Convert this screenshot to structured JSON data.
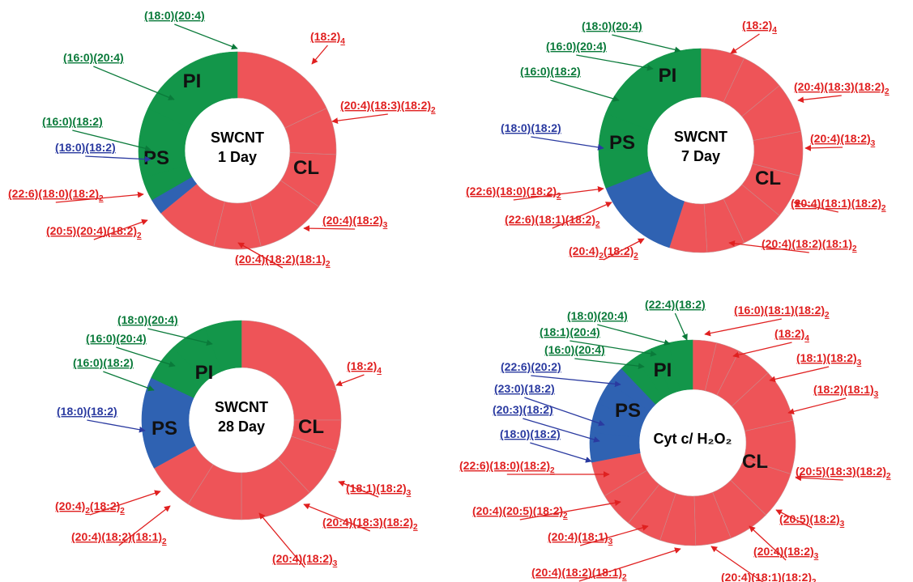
{
  "colors": {
    "CL": "#ee5458",
    "PI": "#13964a",
    "PS": "#2f62b2",
    "CL_text": "#e02020",
    "PI_text": "#0a7a3a",
    "PS_text": "#2a3aa0"
  },
  "chart_data": [
    {
      "type": "pie",
      "variant": "donut",
      "center_lines": [
        "SWCNT",
        "1 Day"
      ],
      "class_labels": {
        "PI": "PI",
        "PS": "PS",
        "CL": "CL"
      },
      "slices": [
        {
          "class": "CL",
          "value": 14
        },
        {
          "class": "CL",
          "value": 6
        },
        {
          "class": "CL",
          "value": 7
        },
        {
          "class": "CL",
          "value": 9
        },
        {
          "class": "CL",
          "value": 6
        },
        {
          "class": "CL",
          "value": 8
        },
        {
          "class": "PS",
          "value": 2
        },
        {
          "class": "PI",
          "value": 3
        },
        {
          "class": "PI",
          "value": 9
        },
        {
          "class": "PI",
          "value": 14
        }
      ],
      "labels": [
        {
          "main": "(18:2)",
          "sub": "4",
          "cls": "CL"
        },
        {
          "main": "(20:4)(18:3)(18:2)",
          "sub": "2",
          "cls": "CL"
        },
        {
          "main": "(20:4)(18:2)",
          "sub": "3",
          "cls": "CL"
        },
        {
          "main": "(20:4)(18:2)(18:1)",
          "sub": "2",
          "cls": "CL"
        },
        {
          "main": "(20:5)(20:4)(18:2)",
          "sub": "2",
          "cls": "CL"
        },
        {
          "main": "(22:6)(18:0)(18:2)",
          "sub": "2",
          "cls": "CL"
        },
        {
          "main": "(18:0)(18:2)",
          "sub": "",
          "cls": "PS"
        },
        {
          "main": "(16:0)(18:2)",
          "sub": "",
          "cls": "PI"
        },
        {
          "main": "(16:0)(20:4)",
          "sub": "",
          "cls": "PI"
        },
        {
          "main": "(18:0)(20:4)",
          "sub": "",
          "cls": "PI"
        }
      ]
    },
    {
      "type": "pie",
      "variant": "donut",
      "center_lines": [
        "SWCNT",
        "7 Day"
      ],
      "class_labels": {
        "PI": "PI",
        "PS": "PS",
        "CL": "CL"
      },
      "slices": [
        {
          "class": "CL",
          "value": 7
        },
        {
          "class": "CL",
          "value": 7
        },
        {
          "class": "CL",
          "value": 8
        },
        {
          "class": "CL",
          "value": 7
        },
        {
          "class": "CL",
          "value": 7
        },
        {
          "class": "CL",
          "value": 7
        },
        {
          "class": "CL",
          "value": 6
        },
        {
          "class": "CL",
          "value": 6
        },
        {
          "class": "PS",
          "value": 14
        },
        {
          "class": "PI",
          "value": 6
        },
        {
          "class": "PI",
          "value": 6
        },
        {
          "class": "PI",
          "value": 19
        }
      ],
      "labels": [
        {
          "main": "(18:2)",
          "sub": "4",
          "cls": "CL"
        },
        {
          "main": "(20:4)(18:3)(18:2)",
          "sub": "2",
          "cls": "CL"
        },
        {
          "main": "(20:4)(18:2)",
          "sub": "3",
          "cls": "CL"
        },
        {
          "main": "(20:4)(18:1)(18:2)",
          "sub": "2",
          "cls": "CL"
        },
        {
          "main": "(20:4)(18:2)(18:1)",
          "sub": "2",
          "cls": "CL"
        },
        {
          "main": "(20:4)",
          "sub": "2",
          "main2": "(18:2)",
          "sub2": "2",
          "cls": "CL"
        },
        {
          "main": "(22:6)(18:1)(18:2)",
          "sub": "2",
          "cls": "CL"
        },
        {
          "main": "(22:6)(18:0)(18:2)",
          "sub": "2",
          "cls": "CL"
        },
        {
          "main": "(18:0)(18:2)",
          "sub": "",
          "cls": "PS"
        },
        {
          "main": "(16:0)(18:2)",
          "sub": "",
          "cls": "PI"
        },
        {
          "main": "(16:0)(20:4)",
          "sub": "",
          "cls": "PI"
        },
        {
          "main": "(18:0)(20:4)",
          "sub": "",
          "cls": "PI"
        }
      ]
    },
    {
      "type": "pie",
      "variant": "donut",
      "center_lines": [
        "SWCNT",
        "28 Day"
      ],
      "class_labels": {
        "PI": "PI",
        "PS": "PS",
        "CL": "CL"
      },
      "slices": [
        {
          "class": "CL",
          "value": 25
        },
        {
          "class": "CL",
          "value": 5
        },
        {
          "class": "CL",
          "value": 8
        },
        {
          "class": "CL",
          "value": 12
        },
        {
          "class": "CL",
          "value": 9
        },
        {
          "class": "CL",
          "value": 8
        },
        {
          "class": "PS",
          "value": 15
        },
        {
          "class": "PI",
          "value": 6
        },
        {
          "class": "PI",
          "value": 6
        },
        {
          "class": "PI",
          "value": 6
        }
      ],
      "labels": [
        {
          "main": "(18:2)",
          "sub": "4",
          "cls": "CL"
        },
        {
          "main": "(18:1)(18:2)",
          "sub": "3",
          "cls": "CL"
        },
        {
          "main": "(20:4)(18:3)(18:2)",
          "sub": "2",
          "cls": "CL"
        },
        {
          "main": "(20:4)(18:2)",
          "sub": "3",
          "cls": "CL"
        },
        {
          "main": "(20:4)(18:2)(18:1)",
          "sub": "2",
          "cls": "CL"
        },
        {
          "main": "(20:4)",
          "sub": "2",
          "main2": "(18:2)",
          "sub2": "2",
          "cls": "CL"
        },
        {
          "main": "(18:0)(18:2)",
          "sub": "",
          "cls": "PS"
        },
        {
          "main": "(16:0)(18:2)",
          "sub": "",
          "cls": "PI"
        },
        {
          "main": "(16:0)(20:4)",
          "sub": "",
          "cls": "PI"
        },
        {
          "main": "(18:0)(20:4)",
          "sub": "",
          "cls": "PI"
        }
      ]
    },
    {
      "type": "pie",
      "variant": "donut",
      "center_lines": [
        "Cyt c/ H₂O₂"
      ],
      "class_labels": {
        "PI": "PI",
        "PS": "PS",
        "CL": "CL"
      },
      "slices": [
        {
          "class": "CL",
          "value": 4
        },
        {
          "class": "CL",
          "value": 4
        },
        {
          "class": "CL",
          "value": 6
        },
        {
          "class": "CL",
          "value": 9
        },
        {
          "class": "CL",
          "value": 9
        },
        {
          "class": "CL",
          "value": 8
        },
        {
          "class": "CL",
          "value": 7
        },
        {
          "class": "CL",
          "value": 6
        },
        {
          "class": "CL",
          "value": 6
        },
        {
          "class": "CL",
          "value": 6
        },
        {
          "class": "CL",
          "value": 6
        },
        {
          "class": "CL",
          "value": 6
        },
        {
          "class": "PS",
          "value": 5
        },
        {
          "class": "PS",
          "value": 5
        },
        {
          "class": "PS",
          "value": 4
        },
        {
          "class": "PS",
          "value": 3
        },
        {
          "class": "PI",
          "value": 3
        },
        {
          "class": "PI",
          "value": 3
        },
        {
          "class": "PI",
          "value": 3
        },
        {
          "class": "PI",
          "value": 4
        }
      ],
      "labels": [
        {
          "main": "(16:0)(18:1)(18:2)",
          "sub": "2",
          "cls": "CL"
        },
        {
          "main": "(18:2)",
          "sub": "4",
          "cls": "CL"
        },
        {
          "main": "(18:1)(18:2)",
          "sub": "3",
          "cls": "CL"
        },
        {
          "main": "(18:2)(18:1)",
          "sub": "3",
          "cls": "CL"
        },
        {
          "main": "(20:5)(18:3)(18:2)",
          "sub": "2",
          "cls": "CL"
        },
        {
          "main": "(20:5)(18:2)",
          "sub": "3",
          "cls": "CL"
        },
        {
          "main": "(20:4)(18:2)",
          "sub": "3",
          "cls": "CL"
        },
        {
          "main": "(20:4)(18:1)(18:2)",
          "sub": "2",
          "cls": "CL"
        },
        {
          "main": "(20:4)(18:2)(18:1)",
          "sub": "2",
          "cls": "CL"
        },
        {
          "main": "(20:4)(18:1)",
          "sub": "3",
          "cls": "CL"
        },
        {
          "main": "(20:4)(20:5)(18:2)",
          "sub": "2",
          "cls": "CL"
        },
        {
          "main": "(22:6)(18:0)(18:2)",
          "sub": "2",
          "cls": "CL"
        },
        {
          "main": "(18:0)(18:2)",
          "sub": "",
          "cls": "PS"
        },
        {
          "main": "(20:3)(18:2)",
          "sub": "",
          "cls": "PS"
        },
        {
          "main": "(23:0)(18:2)",
          "sub": "",
          "cls": "PS"
        },
        {
          "main": "(22:6)(20:2)",
          "sub": "",
          "cls": "PS"
        },
        {
          "main": "(16:0)(20:4)",
          "sub": "",
          "cls": "PI"
        },
        {
          "main": "(18:1)(20:4)",
          "sub": "",
          "cls": "PI"
        },
        {
          "main": "(18:0)(20:4)",
          "sub": "",
          "cls": "PI"
        },
        {
          "main": "(22:4)(18:2)",
          "sub": "",
          "cls": "PI"
        }
      ]
    }
  ]
}
